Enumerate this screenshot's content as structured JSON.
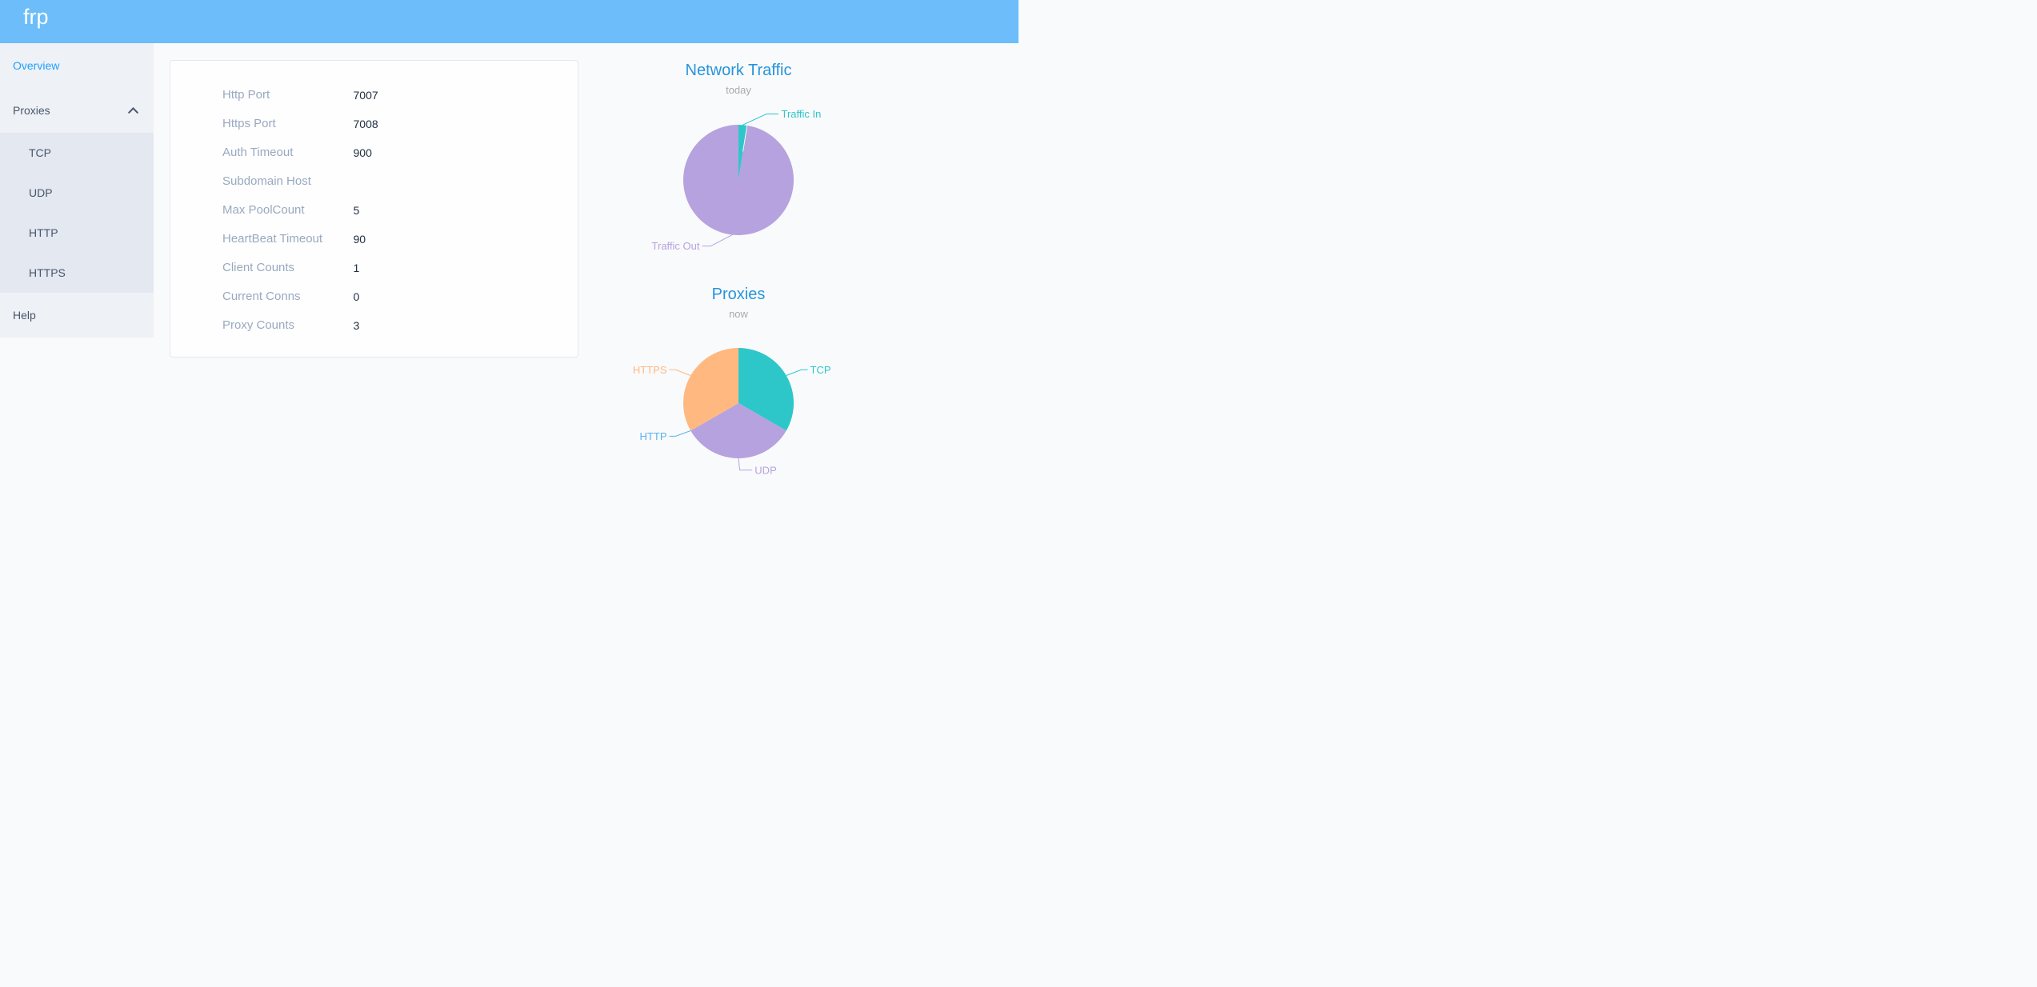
{
  "app": {
    "brand": "frp"
  },
  "sidebar": {
    "items": [
      {
        "id": "overview",
        "label": "Overview",
        "active": true
      },
      {
        "id": "proxies",
        "label": "Proxies",
        "expanded": true,
        "children": [
          {
            "id": "tcp",
            "label": "TCP"
          },
          {
            "id": "udp",
            "label": "UDP"
          },
          {
            "id": "http",
            "label": "HTTP"
          },
          {
            "id": "https",
            "label": "HTTPS"
          }
        ]
      },
      {
        "id": "help",
        "label": "Help"
      }
    ]
  },
  "server_info": {
    "fields": [
      {
        "label": "Http Port",
        "value": "7007"
      },
      {
        "label": "Https Port",
        "value": "7008"
      },
      {
        "label": "Auth Timeout",
        "value": "900"
      },
      {
        "label": "Subdomain Host",
        "value": ""
      },
      {
        "label": "Max PoolCount",
        "value": "5"
      },
      {
        "label": "HeartBeat Timeout",
        "value": "90"
      },
      {
        "label": "Client Counts",
        "value": "1"
      },
      {
        "label": "Current Conns",
        "value": "0"
      },
      {
        "label": "Proxy Counts",
        "value": "3"
      }
    ]
  },
  "chart_data": [
    {
      "type": "pie",
      "title": "Network Traffic",
      "subtitle": "today",
      "legend_position": "none",
      "start_angle": 90,
      "center": [
        200,
        150
      ],
      "radius": 69,
      "seam_angles": [
        81.05
      ],
      "series": [
        {
          "name": "Traffic In",
          "value": 2.5,
          "unit": "percent",
          "color": "#2ec7c9",
          "line": [
            [
              205.4,
              81.2
            ],
            [
              235,
              67.5
            ],
            [
              250,
              67.5
            ]
          ],
          "text": [
            253.5,
            67.5
          ],
          "align": "left"
        },
        {
          "name": "Traffic Out",
          "value": 97.5,
          "unit": "percent",
          "color": "#b6a2de",
          "line": [
            [
              194.2,
              217.6
            ],
            [
              165.4,
              232.6
            ],
            [
              154.5,
              232.6
            ]
          ],
          "text": [
            151.5,
            232.6
          ],
          "align": "right"
        }
      ]
    },
    {
      "type": "pie",
      "title": "Proxies",
      "subtitle": "now",
      "legend_position": "none",
      "start_angle": 90,
      "center": [
        200,
        149
      ],
      "radius": 69,
      "seam_angles": [],
      "series": [
        {
          "name": "TCP",
          "value": 1,
          "unit": "count",
          "color": "#2ec7c9",
          "line": [
            [
              259.8,
              114.5
            ],
            [
              278.5,
              107.3
            ],
            [
              286.5,
              107.3
            ]
          ],
          "text": [
            289.5,
            107.3
          ],
          "align": "left"
        },
        {
          "name": "UDP",
          "value": 1,
          "unit": "count",
          "color": "#b6a2de",
          "line": [
            [
              200,
              218
            ],
            [
              201.6,
              232.7
            ],
            [
              217.2,
              232.7
            ]
          ],
          "text": [
            220.3,
            233
          ],
          "align": "left"
        },
        {
          "name": "HTTP",
          "value": 0,
          "unit": "count",
          "color": "#5ab1ef",
          "line": [
            [
              140.2,
              183.5
            ],
            [
              121.5,
              190.4
            ],
            [
              113.5,
              190.4
            ]
          ],
          "text": [
            110.5,
            190.4
          ],
          "align": "right"
        },
        {
          "name": "HTTPS",
          "value": 1,
          "unit": "count",
          "color": "#ffb980",
          "line": [
            [
              140.2,
              114.5
            ],
            [
              121.5,
              107.3
            ],
            [
              113.5,
              107.3
            ]
          ],
          "text": [
            110.5,
            107.3
          ],
          "align": "right"
        }
      ]
    }
  ],
  "colors": {
    "header": "#6cbdfa",
    "sidebar_bg": "#eef1f6",
    "submenu_bg": "#e4e8f1",
    "menu_text": "#48576a",
    "menu_active": "#20a0ff",
    "page_bg": "#f9fafc",
    "panel_border": "#e3e8f3",
    "label_text": "#99a9bf",
    "value_text": "#1f2d3d",
    "chart_title": "#2794db",
    "chart_subtitle": "#aaaaaa"
  }
}
